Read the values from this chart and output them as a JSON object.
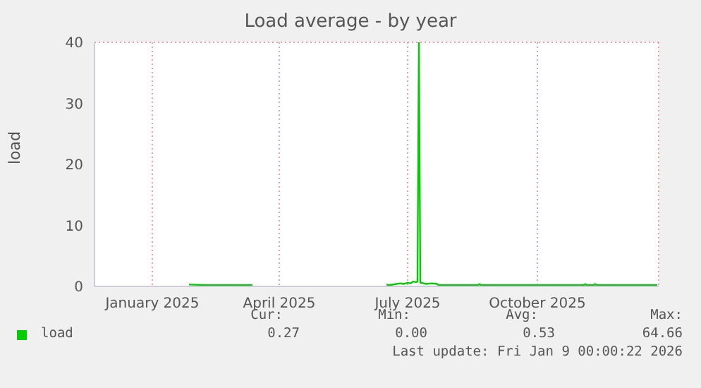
{
  "chart_data": {
    "type": "line",
    "title": "Load average - by year",
    "ylabel": "load",
    "xlim": [
      "2024-11-21",
      "2025-12-26"
    ],
    "xticks": [
      {
        "value": "2025-01-01",
        "label": "January 2025"
      },
      {
        "value": "2025-04-01",
        "label": "April 2025"
      },
      {
        "value": "2025-07-01",
        "label": "July 2025"
      },
      {
        "value": "2025-10-01",
        "label": "October 2025"
      }
    ],
    "ylim": [
      0,
      40
    ],
    "yticks": [
      0,
      10,
      20,
      30,
      40
    ],
    "grid": true,
    "legend": "bottom",
    "series": [
      {
        "name": "load",
        "color": "#00cc00",
        "x": [
          "2025-01-27",
          "2025-02-10",
          "2025-02-25",
          "2025-03-13",
          "2025-03-14",
          "2025-06-16",
          "2025-06-18",
          "2025-06-23",
          "2025-06-26",
          "2025-06-28",
          "2025-07-01",
          "2025-07-03",
          "2025-07-05",
          "2025-07-07",
          "2025-07-08",
          "2025-07-09",
          "2025-07-10",
          "2025-07-11",
          "2025-07-14",
          "2025-07-18",
          "2025-07-22",
          "2025-07-23",
          "2025-08-10",
          "2025-08-20",
          "2025-08-21",
          "2025-08-22",
          "2025-09-15",
          "2025-10-20",
          "2025-11-03",
          "2025-11-04",
          "2025-11-05",
          "2025-11-10",
          "2025-11-11",
          "2025-11-12",
          "2025-12-25"
        ],
        "values": [
          0.3,
          0.2,
          0.2,
          0.2,
          null,
          0.3,
          0.2,
          0.4,
          0.5,
          0.4,
          0.6,
          0.5,
          0.8,
          0.7,
          0.8,
          40,
          0.6,
          0.6,
          0.4,
          0.5,
          0.4,
          0.2,
          0.2,
          0.2,
          0.4,
          0.2,
          0.2,
          0.2,
          0.2,
          0.4,
          0.2,
          0.2,
          0.4,
          0.2,
          0.2
        ]
      }
    ],
    "annotations": [
      "Cur:",
      "Min:",
      "Avg:",
      "Max:",
      "0.27",
      "0.00",
      "0.53",
      "64.66",
      "Last update: Fri Jan  9 00:00:22 2026"
    ]
  }
}
